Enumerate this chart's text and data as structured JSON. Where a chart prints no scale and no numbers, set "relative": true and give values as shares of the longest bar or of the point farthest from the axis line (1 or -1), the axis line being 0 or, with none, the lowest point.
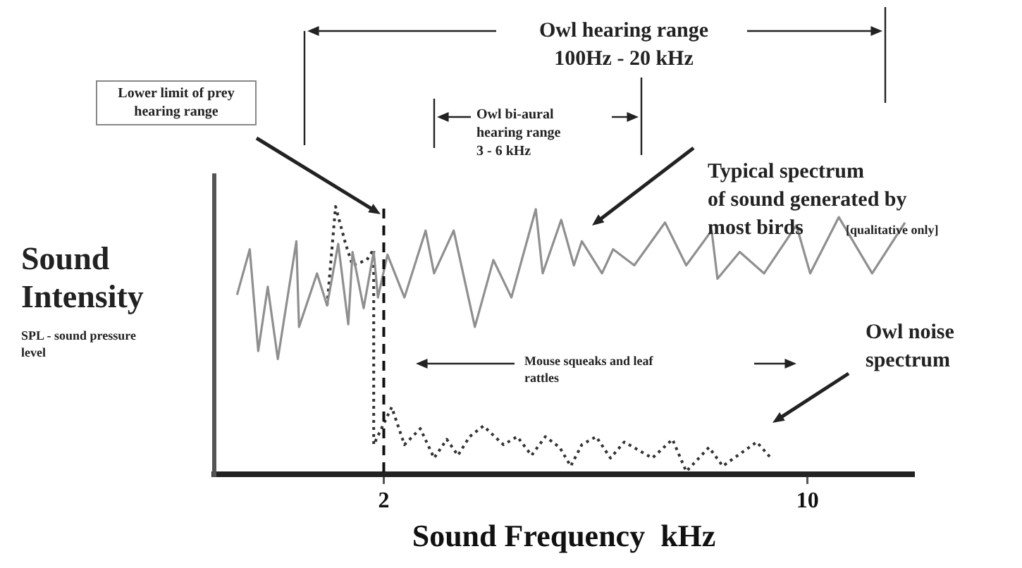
{
  "chart_data": {
    "type": "line",
    "relative": true,
    "xlabel": "Sound Frequency  kHz",
    "ylabel": "Sound Intensity",
    "xlim": [
      -1.2,
      12
    ],
    "xticks": [
      2,
      10
    ],
    "grid": false,
    "series": [
      {
        "color": "#8f8f8f",
        "line_style": "solid",
        "x": [
          -0.77,
          -0.53,
          -0.37,
          -0.19,
          0,
          0.35,
          0.4,
          0.74,
          0.93,
          1.14,
          1.33,
          1.41,
          1.62,
          1.81,
          1.89,
          2.07,
          2.39,
          2.79,
          2.95,
          3.32,
          3.72,
          4.07,
          4.41,
          4.87,
          5,
          5.35,
          5.59,
          5.74,
          6.12,
          6.33,
          6.73,
          7.31,
          7.71,
          8.19,
          8.3,
          8.72,
          9.18,
          9.79,
          10.05,
          10.59,
          11.22,
          11.84
        ],
        "values": [
          0.67,
          0.84,
          0.46,
          0.7,
          0.43,
          0.87,
          0.55,
          0.75,
          0.63,
          0.86,
          0.56,
          0.83,
          0.62,
          0.83,
          0.66,
          0.82,
          0.66,
          0.91,
          0.75,
          0.91,
          0.55,
          0.8,
          0.66,
          0.99,
          0.75,
          0.95,
          0.78,
          0.87,
          0.75,
          0.84,
          0.78,
          0.94,
          0.78,
          0.91,
          0.73,
          0.83,
          0.75,
          0.93,
          0.75,
          0.96,
          0.75,
          0.94
        ]
      },
      {
        "color": "#333333",
        "line_style": "dotted",
        "x": [
          0.93,
          1.09,
          1.28,
          1.41,
          1.68,
          1.81,
          1.81,
          2.15,
          2.39,
          2.69,
          2.95,
          3.19,
          3.4,
          3.62,
          3.88,
          4.26,
          4.52,
          4.79,
          5.05,
          5.32,
          5.53,
          5.74,
          6.01,
          6.28,
          6.54,
          7.07,
          7.45,
          7.71,
          8.14,
          8.4,
          9.04,
          9.31
        ],
        "values": [
          0.63,
          1,
          0.86,
          0.78,
          0.8,
          0.84,
          0.11,
          0.25,
          0.11,
          0.17,
          0.06,
          0.13,
          0.07,
          0.14,
          0.18,
          0.11,
          0.14,
          0.07,
          0.14,
          0.1,
          0.03,
          0.11,
          0.14,
          0.06,
          0.12,
          0.06,
          0.13,
          0.01,
          0.1,
          0.03,
          0.12,
          0.06
        ]
      }
    ],
    "ref_lines": [
      {
        "axis": "x",
        "value": 2,
        "label": "Lower limit of prey hearing range",
        "color": "#111111",
        "line_style": "dashed"
      }
    ],
    "annotations": [
      "Owl hearing range\n100Hz - 20 kHz",
      "Owl bi-aural\nhearing range\n3 - 6 kHz",
      "Typical spectrum\nof sound generated by\nmost birds",
      "[qualitative only]",
      "Mouse squeaks and leaf\nrattles",
      "Owl noise\nspectrum",
      "SPL - sound pressure\nlevel"
    ]
  }
}
